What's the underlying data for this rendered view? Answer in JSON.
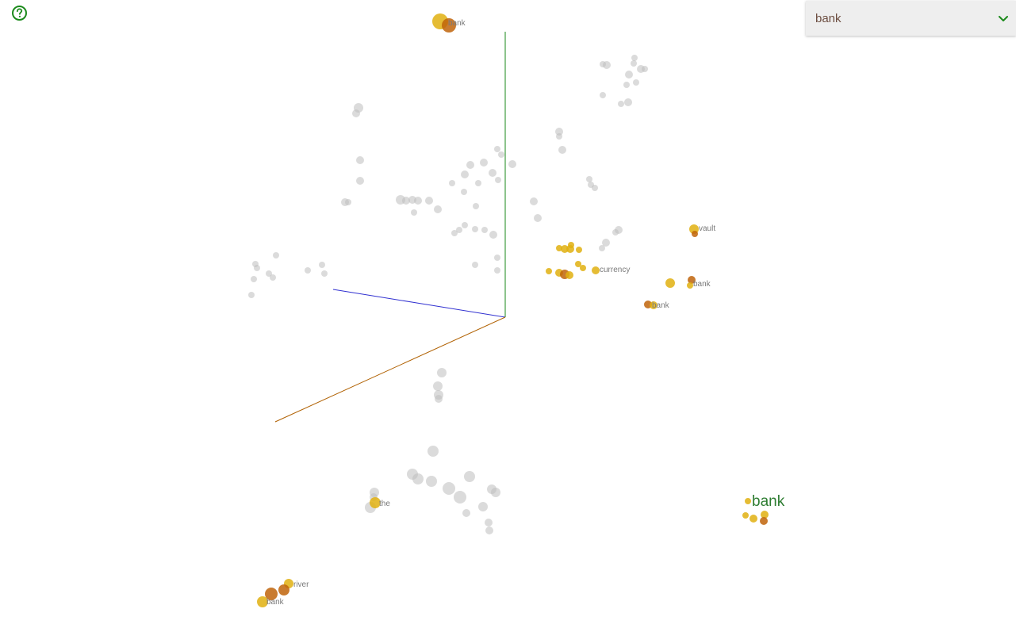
{
  "toolbar": {
    "help_icon": "help-circle-icon",
    "help_color": "#1b8a1b",
    "word_select": {
      "value": "bank",
      "dropdown_icon": "chevron-down-icon",
      "icon_color": "#1b8a1b"
    }
  },
  "colors": {
    "gray_point": "#bdbdbd",
    "highlight_point": "#e0b010",
    "highlight_point_dark": "#c0640a",
    "label_text": "#7a7a7a",
    "selected_label": "#2e7d32",
    "axis_x": "#b06000",
    "axis_y": "#1a8a1a",
    "axis_z": "#3030d0"
  },
  "plot": {
    "word_labels": [
      "bank",
      "vault",
      "currency",
      "bank",
      "bank",
      "the",
      "river",
      "bank"
    ],
    "selected_word": "bank"
  }
}
